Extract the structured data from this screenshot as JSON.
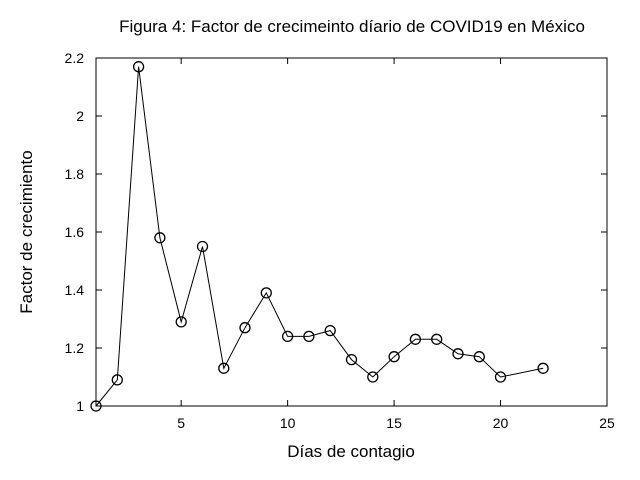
{
  "chart_data": {
    "type": "line",
    "title": "Figura 4: Factor de crecimeinto díario de COVID19 en México",
    "xlabel": "Días de contagio",
    "ylabel": "Factor de crecimiento",
    "xlim": [
      1,
      25
    ],
    "ylim": [
      1,
      2.2
    ],
    "xticks": [
      5,
      10,
      15,
      20,
      25
    ],
    "yticks": [
      1,
      1.2,
      1.4,
      1.6,
      1.8,
      2,
      2.2
    ],
    "xtick_labels": [
      "5",
      "10",
      "15",
      "20",
      "25"
    ],
    "ytick_labels": [
      "1",
      "1.2",
      "1.4",
      "1.6",
      "1.8",
      "2",
      "2.2"
    ],
    "grid": false,
    "marker": "open-circle",
    "line_color": "#000000",
    "series": [
      {
        "x": [
          1,
          2,
          3,
          4,
          5,
          6,
          7,
          8,
          9,
          10,
          11,
          12,
          13,
          14,
          15,
          16,
          17,
          18,
          19,
          20,
          22
        ],
        "y": [
          1.0,
          1.09,
          2.17,
          1.58,
          1.29,
          1.55,
          1.13,
          1.27,
          1.39,
          1.24,
          1.24,
          1.26,
          1.16,
          1.1,
          1.17,
          1.23,
          1.23,
          1.18,
          1.17,
          1.1,
          1.13
        ]
      }
    ]
  }
}
